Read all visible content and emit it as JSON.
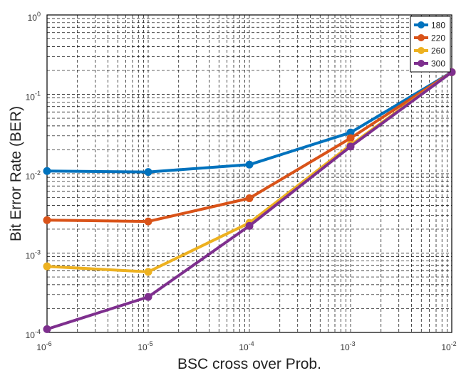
{
  "chart_data": {
    "type": "line",
    "xlabel": "BSC cross over Prob.",
    "ylabel": "Bit Error Rate (BER)",
    "xscale": "log",
    "yscale": "log",
    "xlim": [
      1e-06,
      0.01
    ],
    "ylim": [
      0.0001,
      1
    ],
    "grid": "on (major and minor, dashed)",
    "legend_position": "top-right",
    "x_tick_labels": [
      {
        "base": "10",
        "exp": "-6"
      },
      {
        "base": "10",
        "exp": "-5"
      },
      {
        "base": "10",
        "exp": "-4"
      },
      {
        "base": "10",
        "exp": "-3"
      },
      {
        "base": "10",
        "exp": "-2"
      }
    ],
    "y_tick_labels": [
      {
        "base": "10",
        "exp": "-4"
      },
      {
        "base": "10",
        "exp": "-3"
      },
      {
        "base": "10",
        "exp": "-2"
      },
      {
        "base": "10",
        "exp": "-1"
      },
      {
        "base": "10",
        "exp": "0"
      }
    ],
    "x": [
      1e-06,
      1e-05,
      0.0001,
      0.001,
      0.01
    ],
    "series": [
      {
        "name": "180",
        "color": "#0072BD",
        "values": [
          0.0108,
          0.0105,
          0.013,
          0.033,
          0.19
        ]
      },
      {
        "name": "220",
        "color": "#D95319",
        "values": [
          0.0026,
          0.0025,
          0.0049,
          0.028,
          0.19
        ]
      },
      {
        "name": "260",
        "color": "#EDB120",
        "values": [
          0.00068,
          0.00058,
          0.0024,
          0.023,
          0.19
        ]
      },
      {
        "name": "300",
        "color": "#7E2F8E",
        "values": [
          0.00011,
          0.00028,
          0.0022,
          0.022,
          0.19
        ]
      }
    ]
  }
}
